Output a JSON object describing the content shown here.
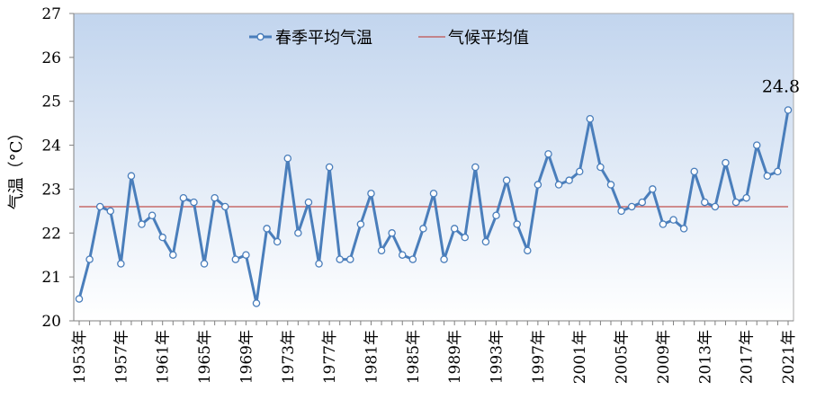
{
  "chart_data": {
    "type": "line",
    "title": "",
    "xlabel": "",
    "ylabel": "气温（°C）",
    "ylim": [
      20,
      27
    ],
    "yticks": [
      20,
      21,
      22,
      23,
      24,
      25,
      26,
      27
    ],
    "x": [
      1953,
      1954,
      1955,
      1956,
      1957,
      1958,
      1959,
      1960,
      1961,
      1962,
      1963,
      1964,
      1965,
      1966,
      1967,
      1968,
      1969,
      1970,
      1971,
      1972,
      1973,
      1974,
      1975,
      1976,
      1977,
      1978,
      1979,
      1980,
      1981,
      1982,
      1983,
      1984,
      1985,
      1986,
      1987,
      1988,
      1989,
      1990,
      1991,
      1992,
      1993,
      1994,
      1995,
      1996,
      1997,
      1998,
      1999,
      2000,
      2001,
      2002,
      2003,
      2004,
      2005,
      2006,
      2007,
      2008,
      2009,
      2010,
      2011,
      2012,
      2013,
      2014,
      2015,
      2016,
      2017,
      2018,
      2019,
      2020,
      2021
    ],
    "xtick_labels": [
      "1953年",
      "1957年",
      "1961年",
      "1965年",
      "1969年",
      "1973年",
      "1977年",
      "1981年",
      "1985年",
      "1989年",
      "1993年",
      "1997年",
      "2001年",
      "2005年",
      "2009年",
      "2013年",
      "2017年",
      "2021年"
    ],
    "series": [
      {
        "name": "春季平均气温",
        "color": "#4a7ebb",
        "values": [
          20.5,
          21.4,
          22.6,
          22.5,
          21.3,
          23.3,
          22.2,
          22.4,
          21.9,
          21.5,
          22.8,
          22.7,
          21.3,
          22.8,
          22.6,
          21.4,
          21.5,
          20.4,
          22.1,
          21.8,
          23.7,
          22.0,
          22.7,
          21.3,
          23.5,
          21.4,
          21.4,
          22.2,
          22.9,
          21.6,
          22.0,
          21.5,
          21.4,
          22.1,
          22.9,
          21.4,
          22.1,
          21.9,
          23.5,
          21.8,
          22.4,
          23.2,
          22.2,
          21.6,
          23.1,
          23.8,
          23.1,
          23.2,
          23.4,
          24.6,
          23.5,
          23.1,
          22.5,
          22.6,
          22.7,
          23.0,
          22.2,
          22.3,
          22.1,
          23.4,
          22.7,
          22.6,
          23.6,
          22.7,
          22.8,
          24.0,
          23.3,
          23.4,
          24.8
        ]
      },
      {
        "name": "气候平均值",
        "color": "#c0504d",
        "constant": 22.6
      }
    ],
    "annotations": [
      {
        "text": "24.8",
        "x": 2021,
        "y": 24.8
      }
    ],
    "legend": "top-center",
    "grid": false
  }
}
